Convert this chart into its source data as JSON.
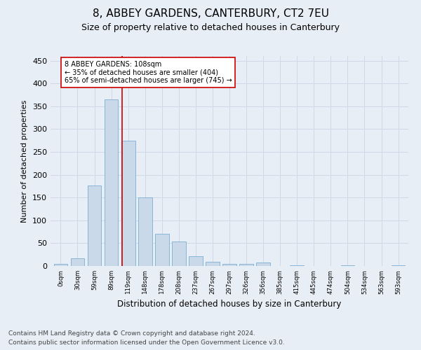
{
  "title": "8, ABBEY GARDENS, CANTERBURY, CT2 7EU",
  "subtitle": "Size of property relative to detached houses in Canterbury",
  "xlabel": "Distribution of detached houses by size in Canterbury",
  "ylabel": "Number of detached properties",
  "bar_values": [
    4,
    17,
    176,
    365,
    274,
    151,
    70,
    53,
    22,
    9,
    5,
    5,
    7,
    0,
    2,
    0,
    0,
    2,
    0,
    0,
    2
  ],
  "tick_labels": [
    "0sqm",
    "30sqm",
    "59sqm",
    "89sqm",
    "119sqm",
    "148sqm",
    "178sqm",
    "208sqm",
    "237sqm",
    "267sqm",
    "297sqm",
    "326sqm",
    "356sqm",
    "385sqm",
    "415sqm",
    "445sqm",
    "474sqm",
    "504sqm",
    "534sqm",
    "563sqm",
    "593sqm"
  ],
  "bar_color": "#c9d9ea",
  "bar_edge_color": "#7bafd4",
  "property_line_x": 3,
  "annotation_text": "8 ABBEY GARDENS: 108sqm\n← 35% of detached houses are smaller (404)\n65% of semi-detached houses are larger (745) →",
  "annotation_box_color": "#ffffff",
  "annotation_box_edge": "#cc0000",
  "red_line_color": "#cc0000",
  "ylim": [
    0,
    460
  ],
  "yticks": [
    0,
    50,
    100,
    150,
    200,
    250,
    300,
    350,
    400,
    450
  ],
  "grid_color": "#d0d8e8",
  "background_color": "#e8eef5",
  "footer_line1": "Contains HM Land Registry data © Crown copyright and database right 2024.",
  "footer_line2": "Contains public sector information licensed under the Open Government Licence v3.0.",
  "title_fontsize": 11,
  "subtitle_fontsize": 9,
  "footer_fontsize": 6.5
}
